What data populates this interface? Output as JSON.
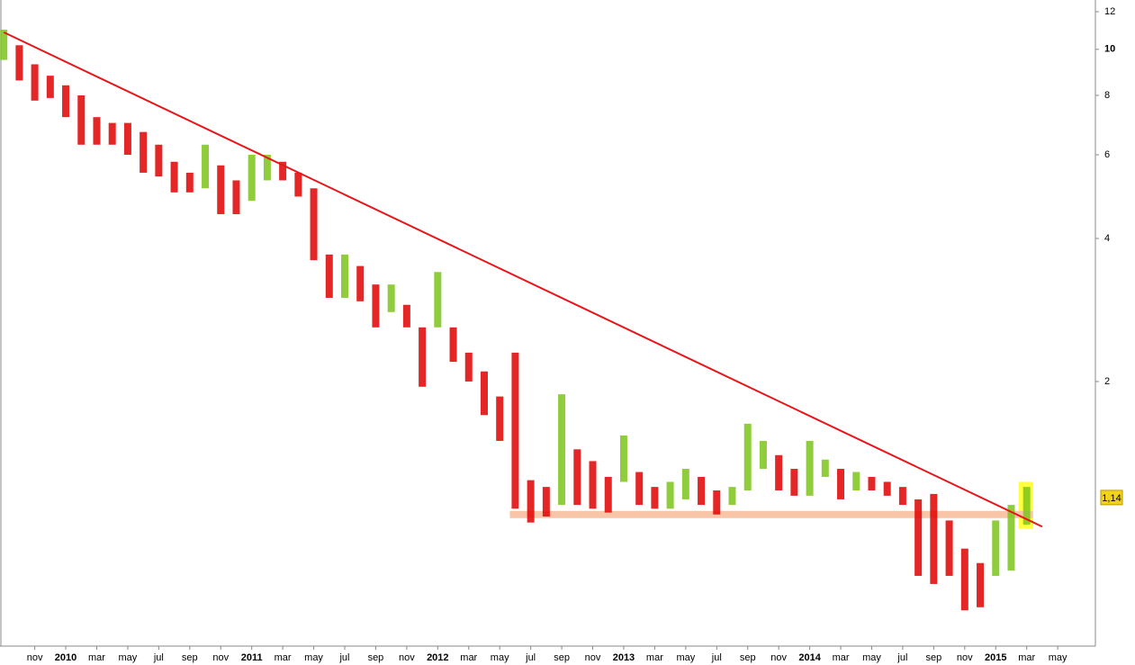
{
  "chart_data": {
    "type": "range_bar",
    "log_scale": true,
    "x": [
      "2009-09",
      "2009-10",
      "2009-11",
      "2009-12",
      "2010-01",
      "2010-02",
      "2010-03",
      "2010-04",
      "2010-05",
      "2010-06",
      "2010-07",
      "2010-08",
      "2010-09",
      "2010-10",
      "2010-11",
      "2010-12",
      "2011-01",
      "2011-02",
      "2011-03",
      "2011-04",
      "2011-05",
      "2011-06",
      "2011-07",
      "2011-08",
      "2011-09",
      "2011-10",
      "2011-11",
      "2011-12",
      "2012-01",
      "2012-02",
      "2012-03",
      "2012-04",
      "2012-05",
      "2012-06",
      "2012-07",
      "2012-08",
      "2012-09",
      "2012-10",
      "2012-11",
      "2012-12",
      "2013-01",
      "2013-02",
      "2013-03",
      "2013-04",
      "2013-05",
      "2013-06",
      "2013-07",
      "2013-08",
      "2013-09",
      "2013-10",
      "2013-11",
      "2013-12",
      "2014-01",
      "2014-02",
      "2014-03",
      "2014-04",
      "2014-05",
      "2014-06",
      "2014-07",
      "2014-08",
      "2014-09",
      "2014-10",
      "2014-11",
      "2014-12",
      "2015-01",
      "2015-02",
      "2015-03"
    ],
    "high": [
      11,
      10.2,
      9.3,
      8.8,
      8.4,
      8.0,
      7.2,
      7.0,
      7.0,
      6.7,
      6.3,
      5.8,
      5.5,
      6.3,
      5.7,
      5.3,
      6.0,
      6.0,
      5.8,
      5.5,
      5.1,
      3.7,
      3.7,
      3.5,
      3.2,
      3.2,
      2.9,
      2.6,
      3.4,
      2.6,
      2.3,
      2.1,
      1.86,
      2.3,
      1.24,
      1.2,
      1.88,
      1.44,
      1.36,
      1.26,
      1.54,
      1.29,
      1.2,
      1.23,
      1.31,
      1.26,
      1.18,
      1.2,
      1.63,
      1.5,
      1.4,
      1.31,
      1.5,
      1.37,
      1.31,
      1.29,
      1.26,
      1.23,
      1.2,
      1.13,
      1.16,
      1.02,
      0.89,
      0.83,
      1.02,
      1.1,
      1.2
    ],
    "low": [
      9.5,
      8.6,
      7.8,
      7.9,
      7.2,
      6.3,
      6.3,
      6.3,
      6.0,
      5.5,
      5.4,
      5.0,
      5.0,
      5.1,
      4.5,
      4.5,
      4.8,
      5.3,
      5.3,
      4.9,
      3.6,
      3.0,
      3.0,
      2.95,
      2.6,
      2.8,
      2.6,
      1.95,
      2.6,
      2.2,
      2.0,
      1.7,
      1.5,
      1.08,
      1.01,
      1.04,
      1.1,
      1.1,
      1.08,
      1.06,
      1.23,
      1.1,
      1.08,
      1.08,
      1.13,
      1.1,
      1.05,
      1.1,
      1.18,
      1.31,
      1.18,
      1.15,
      1.15,
      1.26,
      1.13,
      1.18,
      1.18,
      1.15,
      1.1,
      0.78,
      0.75,
      0.78,
      0.66,
      0.67,
      0.78,
      0.8,
      1.0
    ],
    "up_color": "#7cc41a",
    "down_color": "#e00000",
    "ylim": [
      0.555,
      12.7
    ],
    "yticks": [
      12,
      10,
      8,
      6,
      4,
      2
    ],
    "xticks": [
      {
        "value": "2009-11",
        "label": "nov"
      },
      {
        "value": "2010-01",
        "label": "2010"
      },
      {
        "value": "2010-03",
        "label": "mar"
      },
      {
        "value": "2010-05",
        "label": "may"
      },
      {
        "value": "2010-07",
        "label": "jul"
      },
      {
        "value": "2010-09",
        "label": "sep"
      },
      {
        "value": "2010-11",
        "label": "nov"
      },
      {
        "value": "2011-01",
        "label": "2011"
      },
      {
        "value": "2011-03",
        "label": "mar"
      },
      {
        "value": "2011-05",
        "label": "may"
      },
      {
        "value": "2011-07",
        "label": "jul"
      },
      {
        "value": "2011-09",
        "label": "sep"
      },
      {
        "value": "2011-11",
        "label": "nov"
      },
      {
        "value": "2012-01",
        "label": "2012"
      },
      {
        "value": "2012-03",
        "label": "mar"
      },
      {
        "value": "2012-05",
        "label": "may"
      },
      {
        "value": "2012-07",
        "label": "jul"
      },
      {
        "value": "2012-09",
        "label": "sep"
      },
      {
        "value": "2012-11",
        "label": "nov"
      },
      {
        "value": "2013-01",
        "label": "2013"
      },
      {
        "value": "2013-03",
        "label": "mar"
      },
      {
        "value": "2013-05",
        "label": "may"
      },
      {
        "value": "2013-07",
        "label": "jul"
      },
      {
        "value": "2013-09",
        "label": "sep"
      },
      {
        "value": "2013-11",
        "label": "nov"
      },
      {
        "value": "2014-01",
        "label": "2014"
      },
      {
        "value": "2014-03",
        "label": "mar"
      },
      {
        "value": "2014-05",
        "label": "may"
      },
      {
        "value": "2014-07",
        "label": "jul"
      },
      {
        "value": "2014-09",
        "label": "sep"
      },
      {
        "value": "2014-11",
        "label": "nov"
      },
      {
        "value": "2015-01",
        "label": "2015"
      },
      {
        "value": "2015-03",
        "label": "mar"
      },
      {
        "value": "2015-05",
        "label": "may"
      }
    ],
    "trendline": {
      "x": [
        "2009-09",
        "2015-04"
      ],
      "values": [
        10.86,
        0.99
      ],
      "color": "#e8161b"
    },
    "support": {
      "x": [
        "2012-06",
        "2015-03"
      ],
      "value": 1.05,
      "color": "#f9c5a8"
    },
    "highlight": {
      "x": "2015-03",
      "range": [
        0.98,
        1.23
      ],
      "color": "#ffff40"
    },
    "last_price": {
      "value": 1.14,
      "label": "1,14",
      "color": "#f2d21c"
    }
  }
}
